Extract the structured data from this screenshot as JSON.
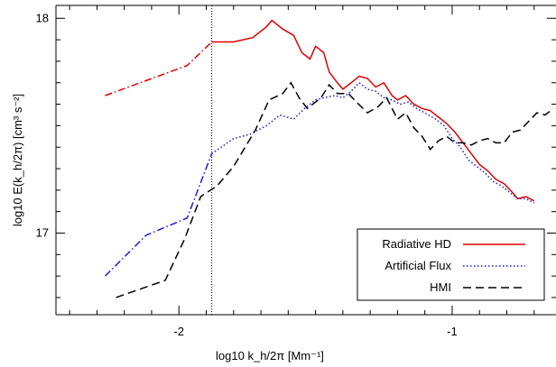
{
  "chart_data": {
    "type": "line",
    "xlabel": "log10 k_h/2π [Mm⁻¹]",
    "ylabel": "log10 E(k_h/2π) [cm³ s⁻²]",
    "xlim": [
      -2.45,
      -0.62
    ],
    "ylim": [
      16.62,
      18.06
    ],
    "x_ticks": [
      {
        "value": -2,
        "label": "-2"
      },
      {
        "value": -1,
        "label": "-1"
      }
    ],
    "y_ticks": [
      {
        "value": 17,
        "label": "17"
      },
      {
        "value": 18,
        "label": "18"
      }
    ],
    "minor_x_ticks": [
      -2.4,
      -2.3,
      -2.2,
      -2.1,
      -1.9,
      -1.8,
      -1.7,
      -1.6,
      -1.5,
      -1.4,
      -1.3,
      -1.2,
      -1.1,
      -0.9,
      -0.8,
      -0.7
    ],
    "minor_y_ticks": [
      16.7,
      16.8,
      16.9,
      17.1,
      17.2,
      17.3,
      17.4,
      17.5,
      17.6,
      17.7,
      17.8,
      17.9
    ],
    "vline_x": -1.88,
    "legend_position": "bottom-right",
    "series": [
      {
        "name": "Radiative HD",
        "color": "#e00000",
        "style": "solid",
        "low_k_style": "dashdot",
        "low_k_end": -1.88,
        "points": [
          [
            -2.27,
            17.64
          ],
          [
            -1.97,
            17.78
          ],
          [
            -1.88,
            17.89
          ],
          [
            -1.8,
            17.89
          ],
          [
            -1.73,
            17.91
          ],
          [
            -1.68,
            17.96
          ],
          [
            -1.66,
            17.99
          ],
          [
            -1.62,
            17.95
          ],
          [
            -1.58,
            17.92
          ],
          [
            -1.55,
            17.84
          ],
          [
            -1.52,
            17.81
          ],
          [
            -1.5,
            17.87
          ],
          [
            -1.47,
            17.84
          ],
          [
            -1.45,
            17.75
          ],
          [
            -1.42,
            17.7
          ],
          [
            -1.4,
            17.67
          ],
          [
            -1.37,
            17.7
          ],
          [
            -1.34,
            17.73
          ],
          [
            -1.31,
            17.72
          ],
          [
            -1.28,
            17.68
          ],
          [
            -1.25,
            17.7
          ],
          [
            -1.22,
            17.64
          ],
          [
            -1.2,
            17.62
          ],
          [
            -1.17,
            17.64
          ],
          [
            -1.14,
            17.6
          ],
          [
            -1.11,
            17.58
          ],
          [
            -1.08,
            17.57
          ],
          [
            -1.05,
            17.54
          ],
          [
            -1.02,
            17.51
          ],
          [
            -0.99,
            17.47
          ],
          [
            -0.96,
            17.42
          ],
          [
            -0.93,
            17.37
          ],
          [
            -0.9,
            17.32
          ],
          [
            -0.87,
            17.29
          ],
          [
            -0.84,
            17.25
          ],
          [
            -0.81,
            17.23
          ],
          [
            -0.78,
            17.19
          ],
          [
            -0.76,
            17.16
          ],
          [
            -0.73,
            17.17
          ],
          [
            -0.7,
            17.15
          ]
        ]
      },
      {
        "name": "Artificial Flux",
        "color": "#1a1adc",
        "style": "dotted",
        "low_k_style": "dashdot",
        "low_k_end": -1.88,
        "points": [
          [
            -2.27,
            16.8
          ],
          [
            -2.12,
            16.99
          ],
          [
            -1.97,
            17.07
          ],
          [
            -1.88,
            17.37
          ],
          [
            -1.8,
            17.44
          ],
          [
            -1.74,
            17.46
          ],
          [
            -1.68,
            17.5
          ],
          [
            -1.63,
            17.55
          ],
          [
            -1.58,
            17.53
          ],
          [
            -1.54,
            17.58
          ],
          [
            -1.5,
            17.62
          ],
          [
            -1.47,
            17.63
          ],
          [
            -1.43,
            17.64
          ],
          [
            -1.4,
            17.63
          ],
          [
            -1.37,
            17.66
          ],
          [
            -1.34,
            17.7
          ],
          [
            -1.31,
            17.67
          ],
          [
            -1.28,
            17.66
          ],
          [
            -1.25,
            17.63
          ],
          [
            -1.22,
            17.62
          ],
          [
            -1.19,
            17.6
          ],
          [
            -1.16,
            17.61
          ],
          [
            -1.13,
            17.58
          ],
          [
            -1.1,
            17.56
          ],
          [
            -1.06,
            17.53
          ],
          [
            -1.03,
            17.5
          ],
          [
            -1.0,
            17.44
          ],
          [
            -0.97,
            17.4
          ],
          [
            -0.94,
            17.34
          ],
          [
            -0.91,
            17.31
          ],
          [
            -0.88,
            17.28
          ],
          [
            -0.85,
            17.24
          ],
          [
            -0.82,
            17.22
          ],
          [
            -0.79,
            17.19
          ],
          [
            -0.76,
            17.16
          ],
          [
            -0.73,
            17.16
          ],
          [
            -0.7,
            17.14
          ]
        ]
      },
      {
        "name": "HMI",
        "color": "#000000",
        "style": "dashed",
        "points": [
          [
            -2.23,
            16.7
          ],
          [
            -2.05,
            16.78
          ],
          [
            -1.98,
            16.97
          ],
          [
            -1.92,
            17.17
          ],
          [
            -1.86,
            17.22
          ],
          [
            -1.8,
            17.31
          ],
          [
            -1.72,
            17.48
          ],
          [
            -1.67,
            17.62
          ],
          [
            -1.62,
            17.65
          ],
          [
            -1.59,
            17.7
          ],
          [
            -1.56,
            17.63
          ],
          [
            -1.53,
            17.58
          ],
          [
            -1.48,
            17.63
          ],
          [
            -1.45,
            17.69
          ],
          [
            -1.42,
            17.65
          ],
          [
            -1.38,
            17.65
          ],
          [
            -1.35,
            17.61
          ],
          [
            -1.31,
            17.56
          ],
          [
            -1.27,
            17.59
          ],
          [
            -1.24,
            17.63
          ],
          [
            -1.2,
            17.53
          ],
          [
            -1.17,
            17.56
          ],
          [
            -1.14,
            17.49
          ],
          [
            -1.11,
            17.45
          ],
          [
            -1.08,
            17.39
          ],
          [
            -1.05,
            17.43
          ],
          [
            -1.02,
            17.45
          ],
          [
            -0.99,
            17.42
          ],
          [
            -0.96,
            17.42
          ],
          [
            -0.93,
            17.41
          ],
          [
            -0.9,
            17.43
          ],
          [
            -0.87,
            17.44
          ],
          [
            -0.84,
            17.42
          ],
          [
            -0.81,
            17.42
          ],
          [
            -0.78,
            17.47
          ],
          [
            -0.75,
            17.48
          ],
          [
            -0.72,
            17.52
          ],
          [
            -0.69,
            17.56
          ],
          [
            -0.66,
            17.55
          ],
          [
            -0.63,
            17.58
          ]
        ]
      }
    ]
  }
}
